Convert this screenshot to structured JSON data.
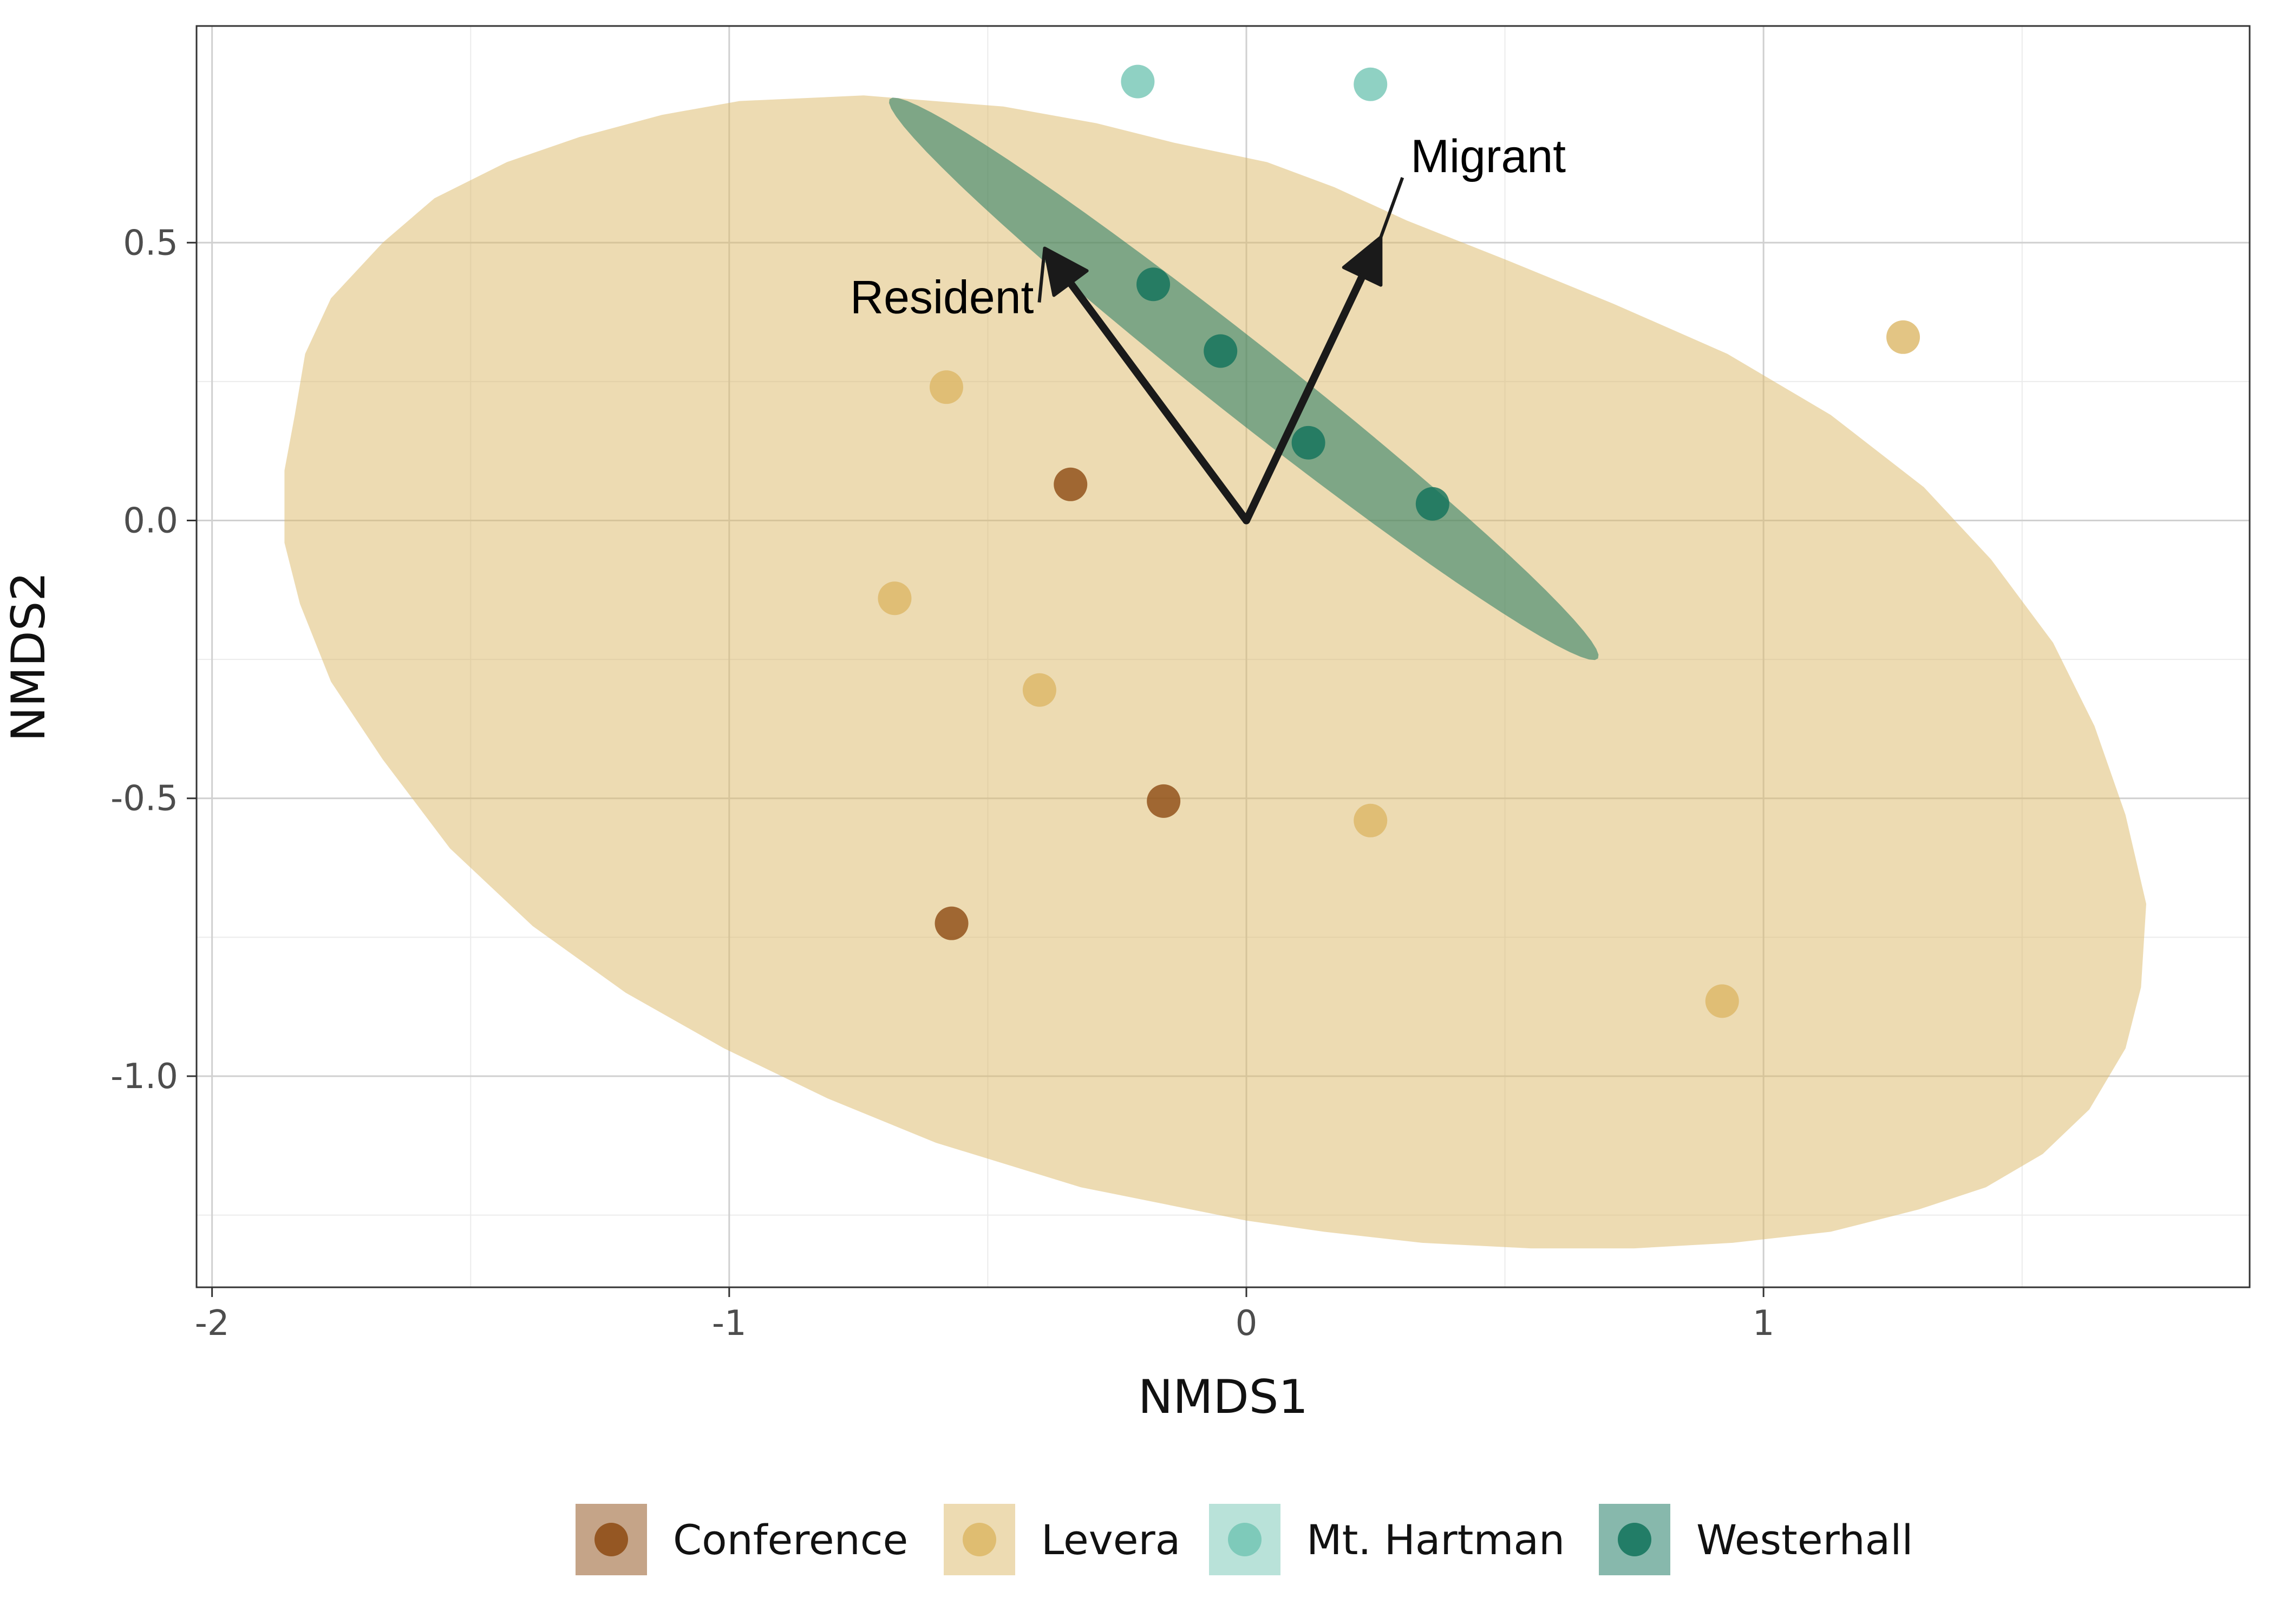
{
  "chart_data": {
    "type": "scatter",
    "xlabel": "NMDS1",
    "ylabel": "NMDS2",
    "xlim": [
      -2.03,
      1.94
    ],
    "ylim": [
      -1.38,
      0.89
    ],
    "x_ticks": [
      -2,
      -1,
      0,
      1
    ],
    "x_tick_labels": [
      "-2",
      "-1",
      "0",
      "1"
    ],
    "y_ticks": [
      -1.0,
      -0.5,
      0.0,
      0.5
    ],
    "y_tick_labels": [
      "-1.0",
      "-0.5",
      "0.0",
      "0.5"
    ],
    "grid": true,
    "legend_position": "bottom",
    "series": [
      {
        "name": "Conference",
        "color": "#8c4a12",
        "points": [
          [
            -0.34,
            0.065
          ],
          [
            -0.16,
            -0.505
          ],
          [
            -0.57,
            -0.725
          ]
        ]
      },
      {
        "name": "Levera",
        "color": "#dcb765",
        "points": [
          [
            -0.58,
            0.24
          ],
          [
            -0.68,
            -0.14
          ],
          [
            -0.4,
            -0.305
          ],
          [
            0.24,
            -0.54
          ],
          [
            0.92,
            -0.865
          ],
          [
            1.27,
            0.33
          ]
        ]
      },
      {
        "name": "Mt. Hartman",
        "color": "#73c5b4",
        "points": [
          [
            -0.21,
            0.79
          ],
          [
            0.24,
            0.785
          ]
        ]
      },
      {
        "name": "Westerhall",
        "color": "#10725a",
        "points": [
          [
            -0.18,
            0.425
          ],
          [
            -0.05,
            0.305
          ],
          [
            0.12,
            0.14
          ],
          [
            0.36,
            0.03
          ]
        ]
      }
    ],
    "ellipses": [
      {
        "group": "Levera",
        "color": "#dcb765",
        "opacity": 0.5,
        "points": [
          [
            -1.84,
            0.19
          ],
          [
            -1.82,
            0.3
          ],
          [
            -1.77,
            0.4
          ],
          [
            -1.67,
            0.5
          ],
          [
            -1.57,
            0.58
          ],
          [
            -1.43,
            0.645
          ],
          [
            -1.29,
            0.69
          ],
          [
            -1.13,
            0.73
          ],
          [
            -0.98,
            0.755
          ],
          [
            -0.74,
            0.765
          ],
          [
            -0.47,
            0.745
          ],
          [
            -0.29,
            0.715
          ],
          [
            -0.14,
            0.68
          ],
          [
            0.04,
            0.645
          ],
          [
            0.17,
            0.6
          ],
          [
            0.31,
            0.54
          ],
          [
            0.5,
            0.47
          ],
          [
            0.71,
            0.39
          ],
          [
            0.93,
            0.3
          ],
          [
            1.13,
            0.19
          ],
          [
            1.31,
            0.06
          ],
          [
            1.44,
            -0.07
          ],
          [
            1.56,
            -0.22
          ],
          [
            1.64,
            -0.37
          ],
          [
            1.7,
            -0.53
          ],
          [
            1.74,
            -0.69
          ],
          [
            1.73,
            -0.84
          ],
          [
            1.7,
            -0.95
          ],
          [
            1.63,
            -1.06
          ],
          [
            1.54,
            -1.14
          ],
          [
            1.43,
            -1.2
          ],
          [
            1.3,
            -1.24
          ],
          [
            1.13,
            -1.28
          ],
          [
            0.94,
            -1.3
          ],
          [
            0.75,
            -1.31
          ],
          [
            0.55,
            -1.31
          ],
          [
            0.34,
            -1.3
          ],
          [
            0.15,
            -1.28
          ],
          [
            0.0,
            -1.26
          ],
          [
            -0.32,
            -1.2
          ],
          [
            -0.6,
            -1.12
          ],
          [
            -0.81,
            -1.04
          ],
          [
            -1.01,
            -0.95
          ],
          [
            -1.2,
            -0.85
          ],
          [
            -1.38,
            -0.73
          ],
          [
            -1.54,
            -0.59
          ],
          [
            -1.67,
            -0.43
          ],
          [
            -1.77,
            -0.29
          ],
          [
            -1.83,
            -0.15
          ],
          [
            -1.86,
            -0.04
          ],
          [
            -1.86,
            0.09
          ]
        ]
      },
      {
        "group": "Westerhall",
        "color": "#10725a",
        "opacity": 0.5,
        "center": [
          -0.005,
          0.255
        ],
        "a": 0.85,
        "b": 0.068,
        "angle_deg": -36.3
      }
    ],
    "vectors": [
      {
        "label": "Resident",
        "x": -0.39,
        "y": 0.49
      },
      {
        "label": "Migrant",
        "x": 0.26,
        "y": 0.51
      }
    ]
  }
}
